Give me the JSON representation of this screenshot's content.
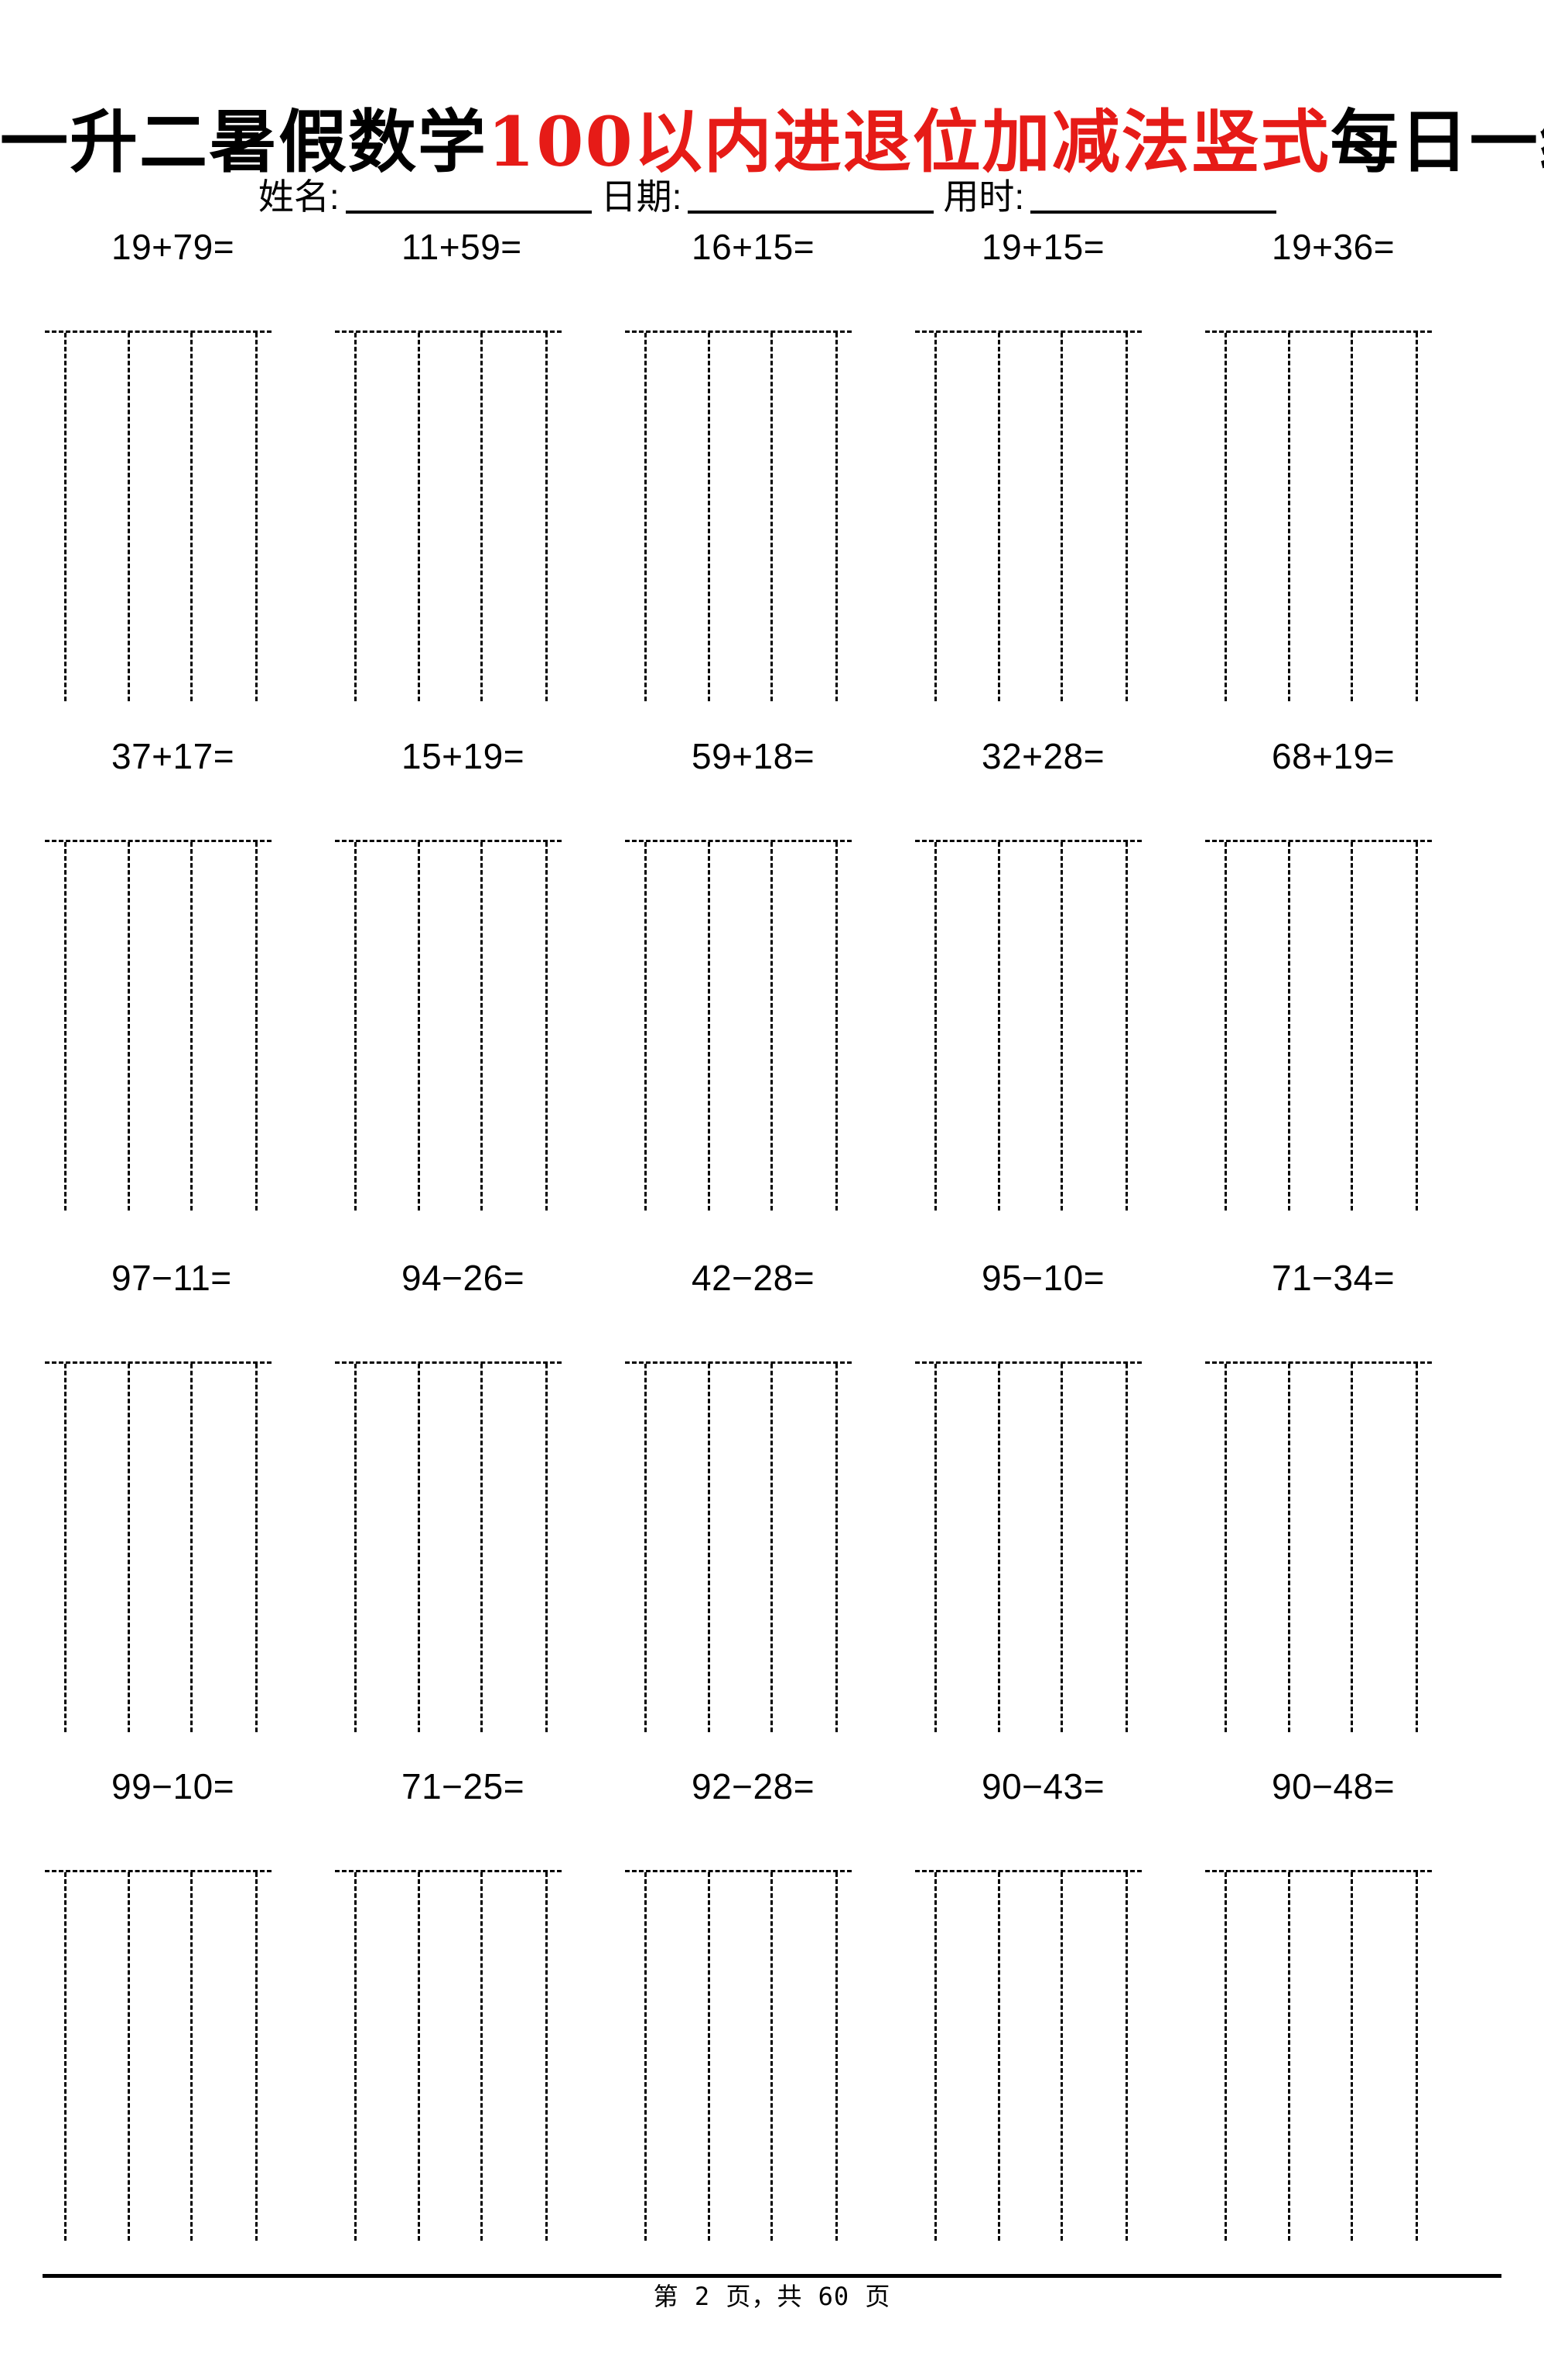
{
  "title": {
    "part1": "一升二暑假数学",
    "part2": "100以内进退位加减法竖式",
    "part3": "每日一练",
    "accent_color": "#e61b17"
  },
  "meta": {
    "name_label": "姓名:",
    "date_label": "日期:",
    "time_label": "用时:"
  },
  "problems": [
    [
      "19+79=",
      "11+59=",
      "16+15=",
      "19+15=",
      "19+36="
    ],
    [
      "37+17=",
      "15+19=",
      "59+18=",
      "32+28=",
      "68+19="
    ],
    [
      "97−11=",
      "94−26=",
      "42−28=",
      "95−10=",
      "71−34="
    ],
    [
      "99−10=",
      "71−25=",
      "92−28=",
      "90−43=",
      "90−48="
    ]
  ],
  "workbox": {
    "columns_per_box": 3,
    "box_count": 20,
    "line_color": "#000000"
  },
  "footer": {
    "page_text": "第 2 页，共 60 页"
  }
}
